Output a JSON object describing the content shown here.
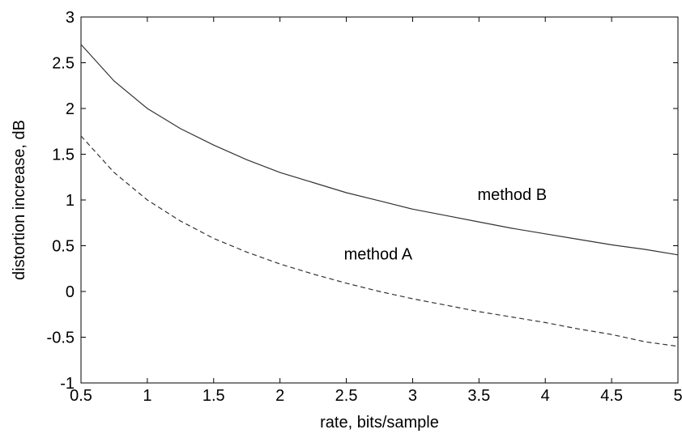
{
  "chart_data": {
    "type": "line",
    "xlabel": "rate, bits/sample",
    "ylabel": "distortion increase, dB",
    "xlim": [
      0.5,
      5
    ],
    "ylim": [
      -1,
      3
    ],
    "xticks": [
      0.5,
      1,
      1.5,
      2,
      2.5,
      3,
      3.5,
      4,
      4.5,
      5
    ],
    "yticks": [
      -1,
      -0.5,
      0,
      0.5,
      1,
      1.5,
      2,
      2.5,
      3
    ],
    "xtick_labels": [
      "0.5",
      "1",
      "1.5",
      "2",
      "2.5",
      "3",
      "3.5",
      "4",
      "4.5",
      "5"
    ],
    "ytick_labels": [
      "-1",
      "-0.5",
      "0",
      "0.5",
      "1",
      "1.5",
      "2",
      "2.5",
      "3"
    ],
    "grid": false,
    "series": [
      {
        "name": "method B",
        "style": "solid",
        "color": "#333333",
        "x": [
          0.5,
          0.75,
          1.0,
          1.25,
          1.5,
          1.75,
          2.0,
          2.25,
          2.5,
          2.75,
          3.0,
          3.25,
          3.5,
          3.75,
          4.0,
          4.25,
          4.5,
          4.75,
          5.0
        ],
        "y": [
          2.7,
          2.3,
          2.0,
          1.78,
          1.6,
          1.44,
          1.3,
          1.19,
          1.08,
          0.99,
          0.9,
          0.83,
          0.76,
          0.69,
          0.63,
          0.57,
          0.51,
          0.46,
          0.4
        ]
      },
      {
        "name": "method A",
        "style": "dashed",
        "color": "#333333",
        "x": [
          0.5,
          0.75,
          1.0,
          1.25,
          1.5,
          1.75,
          2.0,
          2.25,
          2.5,
          2.75,
          3.0,
          3.25,
          3.5,
          3.75,
          4.0,
          4.25,
          4.5,
          4.75,
          5.0
        ],
        "y": [
          1.7,
          1.3,
          1.0,
          0.77,
          0.58,
          0.43,
          0.3,
          0.19,
          0.09,
          0.0,
          -0.08,
          -0.15,
          -0.22,
          -0.28,
          -0.34,
          -0.41,
          -0.47,
          -0.55,
          -0.6
        ]
      }
    ],
    "annotations": [
      {
        "text": "method B",
        "x": 3.75,
        "y": 1.06
      },
      {
        "text": "method A",
        "x": 2.74,
        "y": 0.41
      }
    ]
  }
}
